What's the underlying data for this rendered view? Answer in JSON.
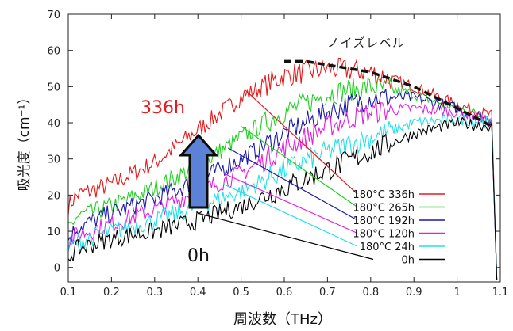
{
  "chart_data": {
    "type": "line",
    "xlabel": "周波数（THz）",
    "ylabel": "吸光度（cm⁻¹）",
    "xlim": [
      0.1,
      1.1
    ],
    "ylim": [
      -4,
      70
    ],
    "x_ticks": [
      "0.1",
      "0.2",
      "0.3",
      "0.4",
      "0.5",
      "0.6",
      "0.7",
      "0.8",
      "0.9",
      "1",
      "1.1"
    ],
    "y_ticks": [
      "0",
      "10",
      "20",
      "30",
      "40",
      "50",
      "60",
      "70"
    ],
    "grid": false,
    "legend_position": "bottom-right",
    "series": [
      {
        "name": "180°C 336h",
        "color": "#e8191b",
        "x": [
          0.1,
          0.12,
          0.2,
          0.3,
          0.4,
          0.5,
          0.6,
          0.7,
          0.8,
          0.9,
          1.0,
          1.08
        ],
        "y": [
          17,
          20,
          23,
          29,
          38,
          47,
          53,
          55,
          54,
          50,
          45,
          42
        ]
      },
      {
        "name": "180°C 265h",
        "color": "#21cf21",
        "x": [
          0.1,
          0.12,
          0.2,
          0.3,
          0.4,
          0.5,
          0.6,
          0.7,
          0.8,
          0.9,
          1.0,
          1.08
        ],
        "y": [
          11,
          14,
          17,
          22,
          28,
          36,
          43,
          48,
          50,
          48,
          44,
          41
        ]
      },
      {
        "name": "180°C 192h",
        "color": "#1a1aa8",
        "x": [
          0.1,
          0.12,
          0.2,
          0.3,
          0.4,
          0.5,
          0.6,
          0.7,
          0.8,
          0.9,
          1.0,
          1.08
        ],
        "y": [
          8,
          11,
          15,
          19,
          24,
          30,
          37,
          43,
          47,
          47,
          44,
          41
        ]
      },
      {
        "name": "180°C 120h",
        "color": "#e21fe2",
        "x": [
          0.1,
          0.12,
          0.2,
          0.3,
          0.4,
          0.5,
          0.6,
          0.7,
          0.8,
          0.9,
          1.0,
          1.08
        ],
        "y": [
          7,
          9,
          12,
          16,
          21,
          26,
          33,
          39,
          43,
          44,
          43,
          40
        ]
      },
      {
        "name": "180°C 24h",
        "color": "#21e0e8",
        "x": [
          0.1,
          0.12,
          0.2,
          0.3,
          0.4,
          0.5,
          0.6,
          0.7,
          0.8,
          0.9,
          1.0,
          1.08
        ],
        "y": [
          5,
          7,
          10,
          13,
          17,
          21,
          27,
          32,
          36,
          40,
          41,
          40
        ]
      },
      {
        "name": "0h",
        "color": "#000000",
        "x": [
          0.1,
          0.12,
          0.2,
          0.3,
          0.4,
          0.5,
          0.6,
          0.7,
          0.8,
          0.9,
          1.0,
          1.08
        ],
        "y": [
          3,
          5,
          8,
          10,
          13,
          17,
          22,
          27,
          32,
          37,
          40,
          39
        ]
      }
    ],
    "noise_level": {
      "label": "ノイズレベル",
      "x": [
        0.6,
        0.65,
        0.7,
        0.75,
        0.8,
        0.85,
        0.9,
        0.95,
        1.0,
        1.05,
        1.08
      ],
      "y": [
        57,
        57,
        56,
        55,
        54,
        52,
        50,
        47,
        44,
        41,
        39
      ]
    },
    "annotations": {
      "top_label": {
        "text": "336h",
        "color": "#e8191b"
      },
      "bottom_label": {
        "text": "0h",
        "color": "#000000"
      },
      "arrow_color": "#5b82d6"
    }
  }
}
